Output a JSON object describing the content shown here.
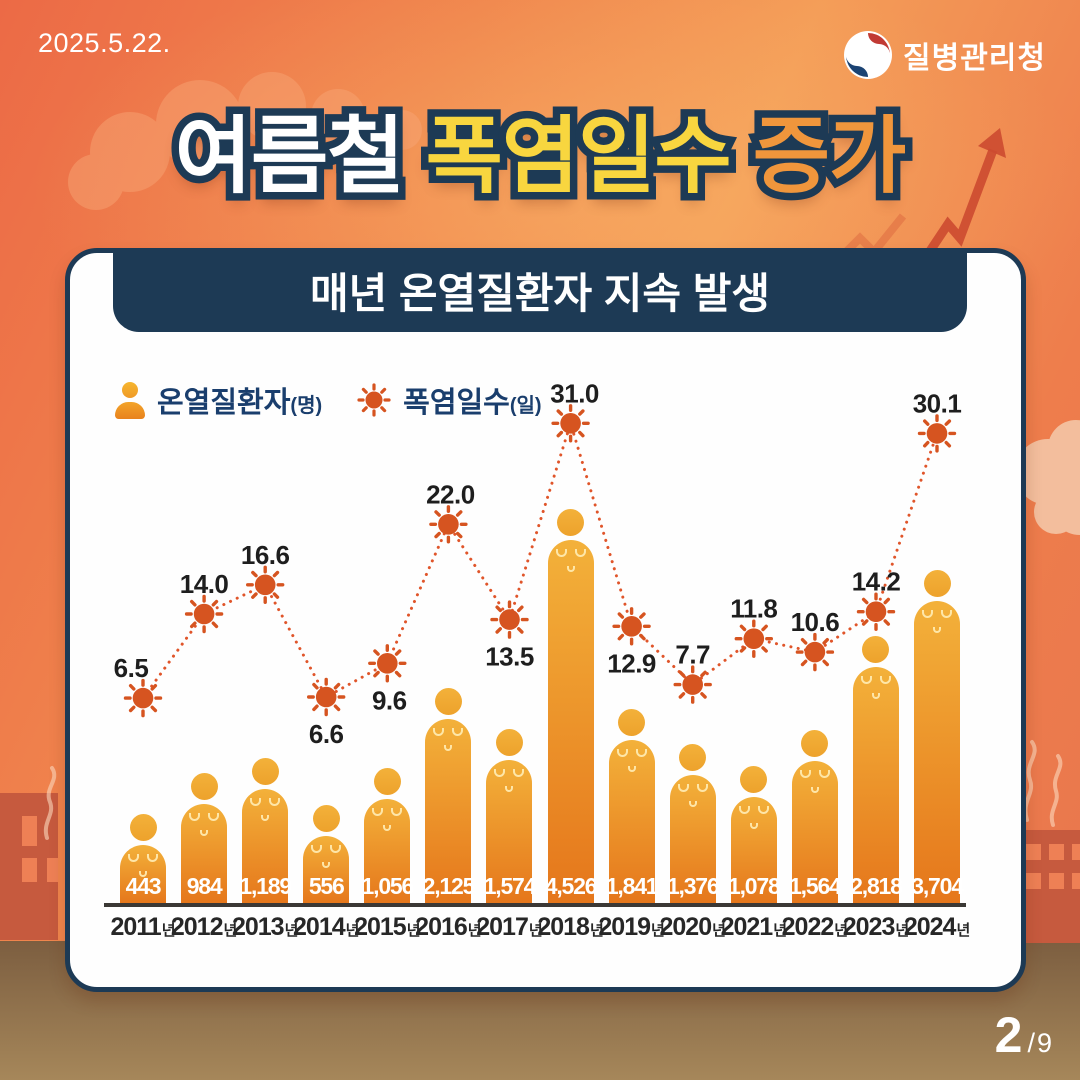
{
  "meta": {
    "date": "2025.5.22.",
    "agency": "질병관리청",
    "page": {
      "current": "2",
      "separator": "/",
      "total": "9"
    }
  },
  "title": {
    "part1": "여름철",
    "part2": "폭염일수",
    "part3": "증가"
  },
  "card": {
    "banner": "매년 온열질환자 지속 발생"
  },
  "legend": {
    "patients_label": "온열질환자",
    "patients_unit": "(명)",
    "heatwave_label": "폭염일수",
    "heatwave_unit": "(일)"
  },
  "chart_data": {
    "type": "bar+line",
    "title": "매년 온열질환자 지속 발생",
    "categories": [
      "2011",
      "2012",
      "2013",
      "2014",
      "2015",
      "2016",
      "2017",
      "2018",
      "2019",
      "2020",
      "2021",
      "2022",
      "2023",
      "2024"
    ],
    "category_suffix": "년",
    "legend_position": "top-left",
    "grid": false,
    "series": [
      {
        "name": "온열질환자(명)",
        "type": "bar",
        "values": [
          443,
          984,
          1189,
          556,
          1056,
          2125,
          1574,
          4526,
          1841,
          1376,
          1078,
          1564,
          2818,
          3704
        ],
        "labels": [
          "443",
          "984",
          "1,189",
          "556",
          "1,056",
          "2,125",
          "1,574",
          "4,526",
          "1,841",
          "1,376",
          "1,078",
          "1,564",
          "2,818",
          "3,704"
        ]
      },
      {
        "name": "폭염일수(일)",
        "type": "line",
        "values": [
          6.5,
          14.0,
          16.6,
          6.6,
          9.6,
          22.0,
          13.5,
          31.0,
          12.9,
          7.7,
          11.8,
          10.6,
          14.2,
          30.1
        ],
        "labels": [
          "6.5",
          "14.0",
          "16.6",
          "6.6",
          "9.6",
          "22.0",
          "13.5",
          "31.0",
          "12.9",
          "7.7",
          "11.8",
          "10.6",
          "14.2",
          "30.1"
        ],
        "label_pos": [
          "above",
          "above",
          "above",
          "below",
          "below",
          "above",
          "below",
          "above",
          "below",
          "above",
          "above",
          "above",
          "above",
          "above"
        ]
      }
    ]
  },
  "colors": {
    "navy": "#1d3a55",
    "title_yellow": "#f8d63f",
    "title_orange": "#f0963c",
    "banner_bg": "#1d3a55",
    "card_bg": "#fefefe",
    "legend_text": "#1a3e6d",
    "bar_top": "#f3b13a",
    "bar_bottom": "#e5761b",
    "sun": "#d65420",
    "line_dot": "#e0552a",
    "axis": "#3b3835",
    "value_text": "#ffffff",
    "ground_top": "#7c5e40",
    "ground_bottom": "#a6875a",
    "building": "#c65a3e",
    "window": "#ee8055",
    "cloud": "#f7a473",
    "arrow": "#cc4a30"
  }
}
